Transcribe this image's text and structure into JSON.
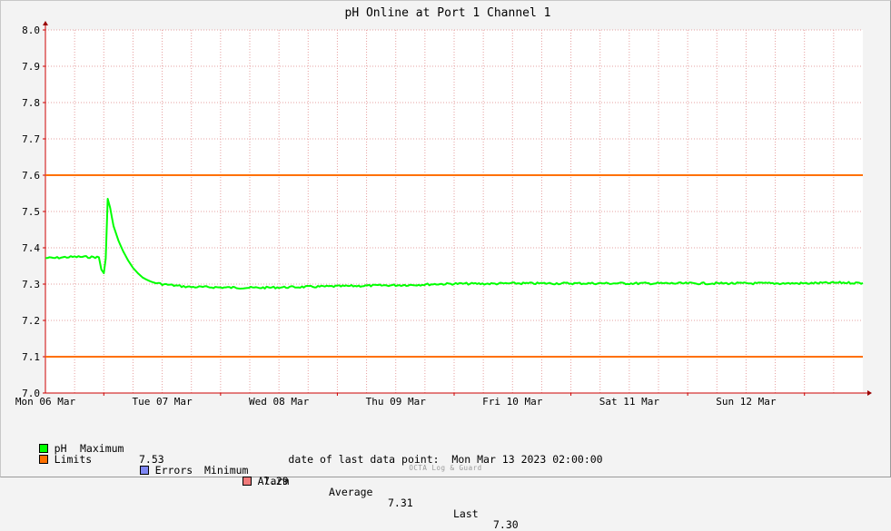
{
  "chart_data": {
    "type": "line",
    "title": "pH Online at Port 1 Channel 1",
    "ylim": [
      7.0,
      8.0
    ],
    "y_ticks": [
      "7.0",
      "7.1",
      "7.2",
      "7.3",
      "7.4",
      "7.5",
      "7.6",
      "7.7",
      "7.8",
      "7.9",
      "8.0"
    ],
    "x_range_hours": [
      0,
      168
    ],
    "x_day_labels": [
      "Mon 06 Mar",
      "Tue 07 Mar",
      "Wed 08 Mar",
      "Thu 09 Mar",
      "Fri 10 Mar",
      "Sat 11 Mar",
      "Sun 12 Mar"
    ],
    "grid": true,
    "series": [
      {
        "name": "pH",
        "color": "#00ff00",
        "points": [
          [
            0,
            7.372
          ],
          [
            2,
            7.372
          ],
          [
            4,
            7.374
          ],
          [
            6,
            7.375
          ],
          [
            8,
            7.375
          ],
          [
            11,
            7.374
          ],
          [
            11.5,
            7.34
          ],
          [
            12,
            7.33
          ],
          [
            12.4,
            7.37
          ],
          [
            12.8,
            7.535
          ],
          [
            13.3,
            7.51
          ],
          [
            14,
            7.46
          ],
          [
            15,
            7.42
          ],
          [
            16,
            7.39
          ],
          [
            17,
            7.365
          ],
          [
            18,
            7.345
          ],
          [
            19,
            7.33
          ],
          [
            20,
            7.318
          ],
          [
            21,
            7.311
          ],
          [
            22,
            7.305
          ],
          [
            24,
            7.3
          ],
          [
            26,
            7.297
          ],
          [
            28,
            7.294
          ],
          [
            30,
            7.292
          ],
          [
            32,
            7.292
          ],
          [
            36,
            7.291
          ],
          [
            40,
            7.29
          ],
          [
            44,
            7.29
          ],
          [
            48,
            7.291
          ],
          [
            52,
            7.292
          ],
          [
            56,
            7.293
          ],
          [
            60,
            7.294
          ],
          [
            64,
            7.295
          ],
          [
            68,
            7.296
          ],
          [
            72,
            7.297
          ],
          [
            76,
            7.298
          ],
          [
            80,
            7.3
          ],
          [
            84,
            7.301
          ],
          [
            88,
            7.301
          ],
          [
            92,
            7.301
          ],
          [
            96,
            7.302
          ],
          [
            100,
            7.302
          ],
          [
            104,
            7.302
          ],
          [
            108,
            7.302
          ],
          [
            112,
            7.302
          ],
          [
            116,
            7.302
          ],
          [
            120,
            7.302
          ],
          [
            124,
            7.302
          ],
          [
            128,
            7.302
          ],
          [
            132,
            7.302
          ],
          [
            136,
            7.302
          ],
          [
            140,
            7.302
          ],
          [
            144,
            7.302
          ],
          [
            148,
            7.302
          ],
          [
            152,
            7.302
          ],
          [
            156,
            7.302
          ],
          [
            160,
            7.303
          ],
          [
            164,
            7.304
          ],
          [
            168,
            7.303
          ]
        ]
      },
      {
        "name": "Limits",
        "color": "#ff7000",
        "values": [
          7.1,
          7.6
        ]
      }
    ],
    "legend_placement": "bottom-left"
  },
  "legend": {
    "ph": {
      "label": "pH",
      "color": "#00ff00"
    },
    "stats": {
      "maximum_label": "Maximum",
      "maximum_value": "7.53",
      "minimum_label": "Minimum",
      "minimum_value": "7.29",
      "average_label": "Average",
      "average_value": "7.31",
      "last_label": "Last",
      "last_value": "7.30"
    },
    "limits": {
      "label": "Limits",
      "color": "#ff7000"
    },
    "errors": {
      "label": "Errors",
      "color": "#7e86f2"
    },
    "alarm": {
      "label": "Alarm",
      "color": "#f07a7a"
    }
  },
  "footer": {
    "date_label": "date of last data point:",
    "date_value": "Mon Mar 13 2023 02:00:00",
    "watermark": "OCTA Log & Guard"
  }
}
